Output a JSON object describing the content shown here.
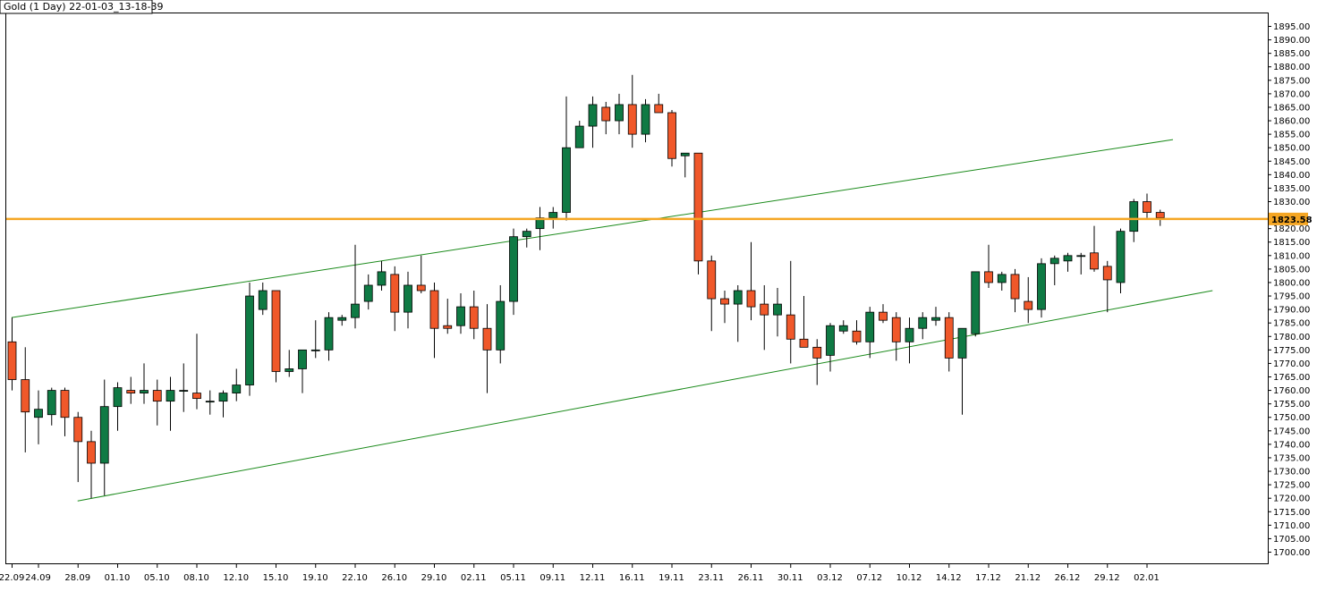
{
  "chart_data": {
    "type": "candlestick",
    "title": "Gold (1 Day) 22-01-03_13-18-39",
    "ylim": [
      1700,
      1895
    ],
    "y_ticks": [
      1700,
      1705,
      1710,
      1715,
      1720,
      1725,
      1730,
      1735,
      1740,
      1745,
      1750,
      1755,
      1760,
      1765,
      1770,
      1775,
      1780,
      1785,
      1790,
      1795,
      1800,
      1805,
      1810,
      1815,
      1820,
      1825,
      1830,
      1835,
      1840,
      1845,
      1850,
      1855,
      1860,
      1865,
      1870,
      1875,
      1880,
      1885,
      1890,
      1895
    ],
    "y_tick_labels": [
      "1700.00",
      "1705.00",
      "1710.00",
      "1715.00",
      "1720.00",
      "1725.00",
      "1730.00",
      "1735.00",
      "1740.00",
      "1745.00",
      "1750.00",
      "1755.00",
      "1760.00",
      "1765.00",
      "1770.00",
      "1775.00",
      "1780.00",
      "1785.00",
      "1790.00",
      "1795.00",
      "1800.00",
      "1805.00",
      "1810.00",
      "1815.00",
      "1820.00",
      "1825.00",
      "1830.00",
      "1835.00",
      "1840.00",
      "1845.00",
      "1850.00",
      "1855.00",
      "1860.00",
      "1865.00",
      "1870.00",
      "1875.00",
      "1880.00",
      "1885.00",
      "1890.00",
      "1895.00"
    ],
    "x_tick_labels": [
      {
        "label": "22.09",
        "bar": 0
      },
      {
        "label": "24.09",
        "bar": 2
      },
      {
        "label": "28.09",
        "bar": 5
      },
      {
        "label": "01.10",
        "bar": 8
      },
      {
        "label": "05.10",
        "bar": 11
      },
      {
        "label": "08.10",
        "bar": 14
      },
      {
        "label": "12.10",
        "bar": 17
      },
      {
        "label": "15.10",
        "bar": 20
      },
      {
        "label": "19.10",
        "bar": 23
      },
      {
        "label": "22.10",
        "bar": 26
      },
      {
        "label": "26.10",
        "bar": 29
      },
      {
        "label": "29.10",
        "bar": 32
      },
      {
        "label": "02.11",
        "bar": 35
      },
      {
        "label": "05.11",
        "bar": 38
      },
      {
        "label": "09.11",
        "bar": 41
      },
      {
        "label": "12.11",
        "bar": 44
      },
      {
        "label": "16.11",
        "bar": 47
      },
      {
        "label": "19.11",
        "bar": 50
      },
      {
        "label": "23.11",
        "bar": 53
      },
      {
        "label": "26.11",
        "bar": 56
      },
      {
        "label": "30.11",
        "bar": 59
      },
      {
        "label": "03.12",
        "bar": 62
      },
      {
        "label": "07.12",
        "bar": 65
      },
      {
        "label": "10.12",
        "bar": 68
      },
      {
        "label": "14.12",
        "bar": 71
      },
      {
        "label": "17.12",
        "bar": 74
      },
      {
        "label": "21.12",
        "bar": 77
      },
      {
        "label": "26.12",
        "bar": 80
      },
      {
        "label": "29.12",
        "bar": 83
      },
      {
        "label": "02.01",
        "bar": 86
      }
    ],
    "candles": [
      {
        "o": 1778,
        "h": 1787,
        "l": 1760,
        "c": 1764
      },
      {
        "o": 1764,
        "h": 1776,
        "l": 1737,
        "c": 1752
      },
      {
        "o": 1750,
        "h": 1760,
        "l": 1740,
        "c": 1753
      },
      {
        "o": 1751,
        "h": 1761,
        "l": 1747,
        "c": 1760
      },
      {
        "o": 1760,
        "h": 1761,
        "l": 1743,
        "c": 1750
      },
      {
        "o": 1750,
        "h": 1752,
        "l": 1726,
        "c": 1741
      },
      {
        "o": 1741,
        "h": 1745,
        "l": 1720,
        "c": 1733
      },
      {
        "o": 1733,
        "h": 1764,
        "l": 1721,
        "c": 1754
      },
      {
        "o": 1754,
        "h": 1763,
        "l": 1745,
        "c": 1761
      },
      {
        "o": 1760,
        "h": 1765,
        "l": 1755,
        "c": 1759
      },
      {
        "o": 1759,
        "h": 1770,
        "l": 1755,
        "c": 1760
      },
      {
        "o": 1760,
        "h": 1764,
        "l": 1747,
        "c": 1756
      },
      {
        "o": 1756,
        "h": 1765,
        "l": 1745,
        "c": 1760
      },
      {
        "o": 1760,
        "h": 1770,
        "l": 1752,
        "c": 1760
      },
      {
        "o": 1759,
        "h": 1781,
        "l": 1753,
        "c": 1757
      },
      {
        "o": 1756,
        "h": 1760,
        "l": 1751,
        "c": 1756
      },
      {
        "o": 1756,
        "h": 1760,
        "l": 1750,
        "c": 1759
      },
      {
        "o": 1759,
        "h": 1768,
        "l": 1756,
        "c": 1762
      },
      {
        "o": 1762,
        "h": 1800,
        "l": 1758,
        "c": 1795
      },
      {
        "o": 1790,
        "h": 1800,
        "l": 1788,
        "c": 1797
      },
      {
        "o": 1797,
        "h": 1797,
        "l": 1763,
        "c": 1767
      },
      {
        "o": 1767,
        "h": 1775,
        "l": 1765,
        "c": 1768
      },
      {
        "o": 1768,
        "h": 1775,
        "l": 1759,
        "c": 1775
      },
      {
        "o": 1775,
        "h": 1786,
        "l": 1772,
        "c": 1775
      },
      {
        "o": 1775,
        "h": 1789,
        "l": 1771,
        "c": 1787
      },
      {
        "o": 1786,
        "h": 1788,
        "l": 1784,
        "c": 1787
      },
      {
        "o": 1787,
        "h": 1814,
        "l": 1783,
        "c": 1792
      },
      {
        "o": 1793,
        "h": 1803,
        "l": 1790,
        "c": 1799
      },
      {
        "o": 1799,
        "h": 1808,
        "l": 1797,
        "c": 1804
      },
      {
        "o": 1803,
        "h": 1806,
        "l": 1782,
        "c": 1789
      },
      {
        "o": 1789,
        "h": 1804,
        "l": 1783,
        "c": 1799
      },
      {
        "o": 1799,
        "h": 1810,
        "l": 1796,
        "c": 1797
      },
      {
        "o": 1797,
        "h": 1800,
        "l": 1772,
        "c": 1783
      },
      {
        "o": 1784,
        "h": 1794,
        "l": 1781,
        "c": 1783
      },
      {
        "o": 1784,
        "h": 1796,
        "l": 1781,
        "c": 1791
      },
      {
        "o": 1791,
        "h": 1797,
        "l": 1779,
        "c": 1783
      },
      {
        "o": 1783,
        "h": 1792,
        "l": 1759,
        "c": 1775
      },
      {
        "o": 1775,
        "h": 1799,
        "l": 1770,
        "c": 1793
      },
      {
        "o": 1793,
        "h": 1820,
        "l": 1788,
        "c": 1817
      },
      {
        "o": 1817,
        "h": 1820,
        "l": 1813,
        "c": 1819
      },
      {
        "o": 1820,
        "h": 1828,
        "l": 1812,
        "c": 1824
      },
      {
        "o": 1824,
        "h": 1828,
        "l": 1820,
        "c": 1826
      },
      {
        "o": 1826,
        "h": 1869,
        "l": 1823,
        "c": 1850
      },
      {
        "o": 1850,
        "h": 1860,
        "l": 1850,
        "c": 1858
      },
      {
        "o": 1858,
        "h": 1869,
        "l": 1850,
        "c": 1866
      },
      {
        "o": 1865,
        "h": 1867,
        "l": 1855,
        "c": 1860
      },
      {
        "o": 1860,
        "h": 1870,
        "l": 1855,
        "c": 1866
      },
      {
        "o": 1866,
        "h": 1877,
        "l": 1850,
        "c": 1855
      },
      {
        "o": 1855,
        "h": 1868,
        "l": 1852,
        "c": 1866
      },
      {
        "o": 1866,
        "h": 1870,
        "l": 1864,
        "c": 1863
      },
      {
        "o": 1863,
        "h": 1864,
        "l": 1843,
        "c": 1846
      },
      {
        "o": 1847,
        "h": 1848,
        "l": 1839,
        "c": 1848
      },
      {
        "o": 1848,
        "h": 1848,
        "l": 1803,
        "c": 1808
      },
      {
        "o": 1808,
        "h": 1810,
        "l": 1782,
        "c": 1794
      },
      {
        "o": 1794,
        "h": 1797,
        "l": 1785,
        "c": 1792
      },
      {
        "o": 1792,
        "h": 1799,
        "l": 1778,
        "c": 1797
      },
      {
        "o": 1797,
        "h": 1815,
        "l": 1786,
        "c": 1791
      },
      {
        "o": 1792,
        "h": 1799,
        "l": 1775,
        "c": 1788
      },
      {
        "o": 1788,
        "h": 1798,
        "l": 1780,
        "c": 1792
      },
      {
        "o": 1788,
        "h": 1808,
        "l": 1770,
        "c": 1779
      },
      {
        "o": 1779,
        "h": 1795,
        "l": 1777,
        "c": 1776
      },
      {
        "o": 1776,
        "h": 1779,
        "l": 1762,
        "c": 1772
      },
      {
        "o": 1773,
        "h": 1785,
        "l": 1767,
        "c": 1784
      },
      {
        "o": 1782,
        "h": 1786,
        "l": 1781,
        "c": 1784
      },
      {
        "o": 1782,
        "h": 1786,
        "l": 1777,
        "c": 1778
      },
      {
        "o": 1778,
        "h": 1791,
        "l": 1772,
        "c": 1789
      },
      {
        "o": 1789,
        "h": 1792,
        "l": 1785,
        "c": 1786
      },
      {
        "o": 1787,
        "h": 1789,
        "l": 1771,
        "c": 1778
      },
      {
        "o": 1778,
        "h": 1787,
        "l": 1770,
        "c": 1783
      },
      {
        "o": 1783,
        "h": 1789,
        "l": 1779,
        "c": 1787
      },
      {
        "o": 1786,
        "h": 1791,
        "l": 1784,
        "c": 1787
      },
      {
        "o": 1787,
        "h": 1789,
        "l": 1767,
        "c": 1772
      },
      {
        "o": 1772,
        "h": 1783,
        "l": 1751,
        "c": 1783
      },
      {
        "o": 1781,
        "h": 1804,
        "l": 1780,
        "c": 1804
      },
      {
        "o": 1804,
        "h": 1814,
        "l": 1798,
        "c": 1800
      },
      {
        "o": 1800,
        "h": 1804,
        "l": 1797,
        "c": 1803
      },
      {
        "o": 1803,
        "h": 1805,
        "l": 1789,
        "c": 1794
      },
      {
        "o": 1793,
        "h": 1802,
        "l": 1785,
        "c": 1790
      },
      {
        "o": 1790,
        "h": 1809,
        "l": 1787,
        "c": 1807
      },
      {
        "o": 1807,
        "h": 1810,
        "l": 1799,
        "c": 1809
      },
      {
        "o": 1808,
        "h": 1811,
        "l": 1804,
        "c": 1810
      },
      {
        "o": 1810,
        "h": 1811,
        "l": 1803,
        "c": 1810
      },
      {
        "o": 1811,
        "h": 1821,
        "l": 1804,
        "c": 1805
      },
      {
        "o": 1806,
        "h": 1808,
        "l": 1789,
        "c": 1801
      },
      {
        "o": 1800,
        "h": 1820,
        "l": 1796,
        "c": 1819
      },
      {
        "o": 1819,
        "h": 1831,
        "l": 1815,
        "c": 1830
      },
      {
        "o": 1830,
        "h": 1833,
        "l": 1824,
        "c": 1826
      },
      {
        "o": 1826,
        "h": 1827,
        "l": 1821,
        "c": 1824
      }
    ],
    "horizontal_line": {
      "value": 1823.58,
      "label": "1823.58",
      "color": "#f5a623"
    },
    "trend_lines": [
      {
        "name": "upper-channel-line",
        "from": {
          "bar": 0,
          "value": 1787
        },
        "to": {
          "bar": 88,
          "value": 1853
        },
        "color": "#1a8a1a"
      },
      {
        "name": "lower-channel-line",
        "from": {
          "bar": 5,
          "value": 1719
        },
        "to": {
          "bar": 91,
          "value": 1797
        },
        "color": "#1a8a1a"
      }
    ],
    "colors": {
      "up": "#0f7a44",
      "down": "#f0582a",
      "outline": "#000000",
      "grid": "none"
    },
    "grid": false,
    "xlabel": "",
    "ylabel": ""
  }
}
